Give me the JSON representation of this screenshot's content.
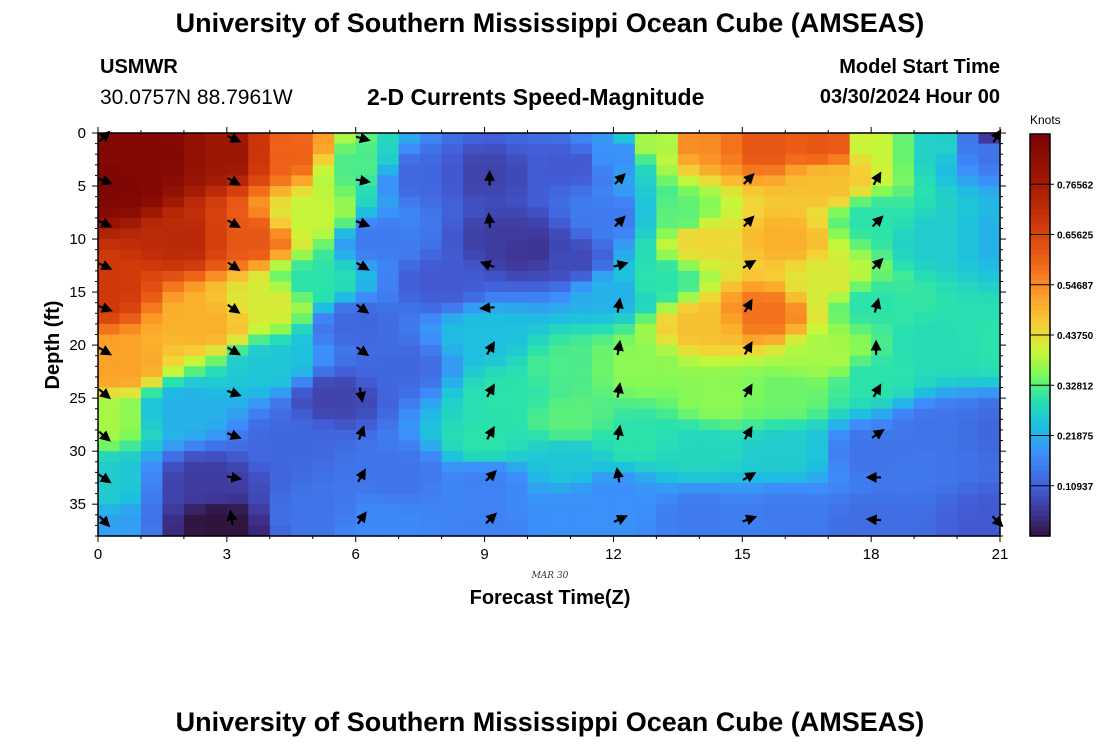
{
  "header": {
    "title": "University of Southern Mississippi Ocean Cube (AMSEAS)",
    "station": "USMWR",
    "coordinates": "30.0757N  88.7961W",
    "model_start_label": "Model Start Time",
    "model_start_value": "03/30/2024 Hour 00"
  },
  "footer": {
    "title": "University of Southern Mississippi Ocean Cube (AMSEAS)"
  },
  "colorbar": {
    "units": "Knots",
    "ticks": [
      "0.10937",
      "0.21875",
      "0.32812",
      "0.43750",
      "0.54687",
      "0.65625",
      "0.76562"
    ],
    "tick_values": [
      0.10937,
      0.21875,
      0.32812,
      0.4375,
      0.54687,
      0.65625,
      0.76562
    ],
    "range": [
      0,
      0.875
    ]
  },
  "chart_data": {
    "type": "heatmap",
    "title": "2-D Currents Speed-Magnitude",
    "xlabel": "Forecast Time(Z)",
    "ylabel": "Depth (ft)",
    "date_label": "MAR 30",
    "x_ticks": [
      0,
      3,
      6,
      9,
      12,
      15,
      18,
      21
    ],
    "y_ticks": [
      0,
      5,
      10,
      15,
      20,
      25,
      30,
      35
    ],
    "xlim": [
      0,
      21
    ],
    "ylim": [
      0,
      38
    ],
    "y_inverted": true,
    "cell_size": [
      0.5,
      1.0
    ],
    "field_description": "current speed (knots) vs forecast hour and depth, sampled from anchor points",
    "anchors": [
      {
        "t": 0,
        "d": 0,
        "v": 0.85
      },
      {
        "t": 0.5,
        "d": 5,
        "v": 0.86
      },
      {
        "t": 1.5,
        "d": 2,
        "v": 0.85
      },
      {
        "t": 0,
        "d": 15,
        "v": 0.68
      },
      {
        "t": 0.5,
        "d": 22,
        "v": 0.52
      },
      {
        "t": 0,
        "d": 27,
        "v": 0.38
      },
      {
        "t": 0,
        "d": 33,
        "v": 0.26
      },
      {
        "t": 0,
        "d": 38,
        "v": 0.2
      },
      {
        "t": 2,
        "d": 10,
        "v": 0.72
      },
      {
        "t": 2.5,
        "d": 18,
        "v": 0.5
      },
      {
        "t": 2,
        "d": 26,
        "v": 0.22
      },
      {
        "t": 2.5,
        "d": 33,
        "v": 0.06
      },
      {
        "t": 2.8,
        "d": 37,
        "v": 0.0
      },
      {
        "t": 3,
        "d": 2,
        "v": 0.78
      },
      {
        "t": 3.5,
        "d": 10,
        "v": 0.62
      },
      {
        "t": 4,
        "d": 16,
        "v": 0.42
      },
      {
        "t": 4,
        "d": 22,
        "v": 0.25
      },
      {
        "t": 4.5,
        "d": 2,
        "v": 0.6
      },
      {
        "t": 5,
        "d": 8,
        "v": 0.4
      },
      {
        "t": 5,
        "d": 14,
        "v": 0.3
      },
      {
        "t": 5.5,
        "d": 25,
        "v": 0.07
      },
      {
        "t": 4.5,
        "d": 29,
        "v": 0.12
      },
      {
        "t": 5,
        "d": 36,
        "v": 0.14
      },
      {
        "t": 6,
        "d": 3,
        "v": 0.32
      },
      {
        "t": 6.5,
        "d": 10,
        "v": 0.15
      },
      {
        "t": 6,
        "d": 18,
        "v": 0.12
      },
      {
        "t": 7,
        "d": 22,
        "v": 0.12
      },
      {
        "t": 7,
        "d": 32,
        "v": 0.14
      },
      {
        "t": 6.5,
        "d": 37,
        "v": 0.17
      },
      {
        "t": 7.5,
        "d": 4,
        "v": 0.12
      },
      {
        "t": 8,
        "d": 14,
        "v": 0.1
      },
      {
        "t": 9,
        "d": 4,
        "v": 0.07
      },
      {
        "t": 9.5,
        "d": 10,
        "v": 0.06
      },
      {
        "t": 10,
        "d": 11,
        "v": 0.05
      },
      {
        "t": 9,
        "d": 19,
        "v": 0.24
      },
      {
        "t": 9.5,
        "d": 25,
        "v": 0.3
      },
      {
        "t": 9,
        "d": 29,
        "v": 0.3
      },
      {
        "t": 9,
        "d": 33,
        "v": 0.16
      },
      {
        "t": 9,
        "d": 37,
        "v": 0.16
      },
      {
        "t": 11,
        "d": 3,
        "v": 0.1
      },
      {
        "t": 11,
        "d": 12,
        "v": 0.08
      },
      {
        "t": 11,
        "d": 22,
        "v": 0.32
      },
      {
        "t": 11,
        "d": 27,
        "v": 0.33
      },
      {
        "t": 11,
        "d": 31,
        "v": 0.25
      },
      {
        "t": 11,
        "d": 36,
        "v": 0.18
      },
      {
        "t": 12,
        "d": 2,
        "v": 0.18
      },
      {
        "t": 12,
        "d": 8,
        "v": 0.15
      },
      {
        "t": 12,
        "d": 15,
        "v": 0.22
      },
      {
        "t": 12.5,
        "d": 22,
        "v": 0.36
      },
      {
        "t": 12.5,
        "d": 29,
        "v": 0.3
      },
      {
        "t": 12,
        "d": 34,
        "v": 0.18
      },
      {
        "t": 13,
        "d": 1,
        "v": 0.38
      },
      {
        "t": 13.5,
        "d": 8,
        "v": 0.33
      },
      {
        "t": 13,
        "d": 14,
        "v": 0.3
      },
      {
        "t": 14,
        "d": 1,
        "v": 0.55
      },
      {
        "t": 14,
        "d": 10,
        "v": 0.45
      },
      {
        "t": 14,
        "d": 18,
        "v": 0.48
      },
      {
        "t": 14.5,
        "d": 25,
        "v": 0.36
      },
      {
        "t": 14,
        "d": 30,
        "v": 0.28
      },
      {
        "t": 14,
        "d": 36,
        "v": 0.15
      },
      {
        "t": 15.5,
        "d": 1,
        "v": 0.62
      },
      {
        "t": 15.5,
        "d": 17,
        "v": 0.58
      },
      {
        "t": 16,
        "d": 10,
        "v": 0.5
      },
      {
        "t": 16,
        "d": 25,
        "v": 0.34
      },
      {
        "t": 16,
        "d": 30,
        "v": 0.26
      },
      {
        "t": 16,
        "d": 36,
        "v": 0.15
      },
      {
        "t": 17,
        "d": 1,
        "v": 0.62
      },
      {
        "t": 17,
        "d": 5,
        "v": 0.48
      },
      {
        "t": 17,
        "d": 14,
        "v": 0.42
      },
      {
        "t": 17,
        "d": 21,
        "v": 0.38
      },
      {
        "t": 18,
        "d": 1,
        "v": 0.4
      },
      {
        "t": 18,
        "d": 8,
        "v": 0.3
      },
      {
        "t": 18,
        "d": 16,
        "v": 0.3
      },
      {
        "t": 18,
        "d": 23,
        "v": 0.3
      },
      {
        "t": 18,
        "d": 30,
        "v": 0.14
      },
      {
        "t": 18,
        "d": 37,
        "v": 0.13
      },
      {
        "t": 19.5,
        "d": 1,
        "v": 0.27
      },
      {
        "t": 19.5,
        "d": 10,
        "v": 0.26
      },
      {
        "t": 19.5,
        "d": 20,
        "v": 0.29
      },
      {
        "t": 19.5,
        "d": 28,
        "v": 0.14
      },
      {
        "t": 20.5,
        "d": 1,
        "v": 0.15
      },
      {
        "t": 20.8,
        "d": 0,
        "v": 0.04
      },
      {
        "t": 21,
        "d": 10,
        "v": 0.22
      },
      {
        "t": 21,
        "d": 20,
        "v": 0.3
      },
      {
        "t": 21,
        "d": 28,
        "v": 0.12
      },
      {
        "t": 21,
        "d": 37,
        "v": 0.1
      }
    ],
    "vector_times": [
      0,
      3,
      6,
      9,
      12,
      15,
      18,
      21
    ],
    "vector_depths": [
      0,
      4,
      8,
      12,
      16,
      20,
      24,
      28,
      32,
      36
    ],
    "vectors_deg": [
      [
        -45,
        20,
        25,
        25,
        20,
        30,
        40,
        40,
        35,
        45
      ],
      [
        25,
        30,
        30,
        35,
        35,
        30,
        20,
        20,
        10,
        260
      ],
      [
        15,
        10,
        20,
        30,
        35,
        35,
        80,
        -70,
        -60,
        -55
      ],
      [
        null,
        -90,
        -95,
        200,
        175,
        -60,
        -60,
        -60,
        -45,
        -45
      ],
      [
        null,
        -45,
        -45,
        -15,
        -80,
        -80,
        -80,
        -80,
        -100,
        -25
      ],
      [
        null,
        -45,
        -45,
        -30,
        -60,
        -60,
        -60,
        -60,
        -30,
        -20
      ],
      [
        null,
        -60,
        -45,
        -45,
        -75,
        -90,
        -60,
        -35,
        180,
        -175
      ],
      [
        -60,
        null,
        null,
        null,
        null,
        null,
        null,
        null,
        null,
        45
      ]
    ]
  }
}
